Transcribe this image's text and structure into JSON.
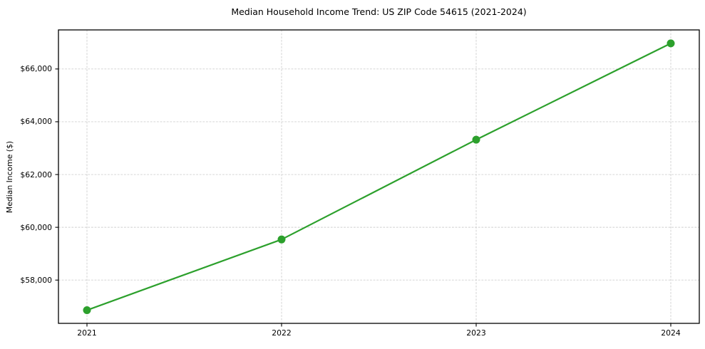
{
  "chart_data": {
    "type": "line",
    "title": "Median Household Income Trend: US ZIP Code 54615 (2021-2024)",
    "xlabel": "",
    "ylabel": "Median Income ($)",
    "categories": [
      "2021",
      "2022",
      "2023",
      "2024"
    ],
    "values": [
      56860,
      59540,
      63320,
      66970
    ],
    "series_name": "Median Household Income",
    "line_color": "#2ca02c",
    "marker": "circle",
    "marker_color": "#2ca02c",
    "y_ticks": {
      "values": [
        58000,
        60000,
        62000,
        64000,
        66000
      ],
      "labels": [
        "$58,000",
        "$60,000",
        "$62,000",
        "$64,000",
        "$66,000"
      ]
    },
    "ylim": [
      56360,
      67480
    ],
    "grid": "dashed",
    "grid_color": "#cfcfcf",
    "spine_color": "#000000",
    "background": "#ffffff",
    "legend": "none"
  }
}
